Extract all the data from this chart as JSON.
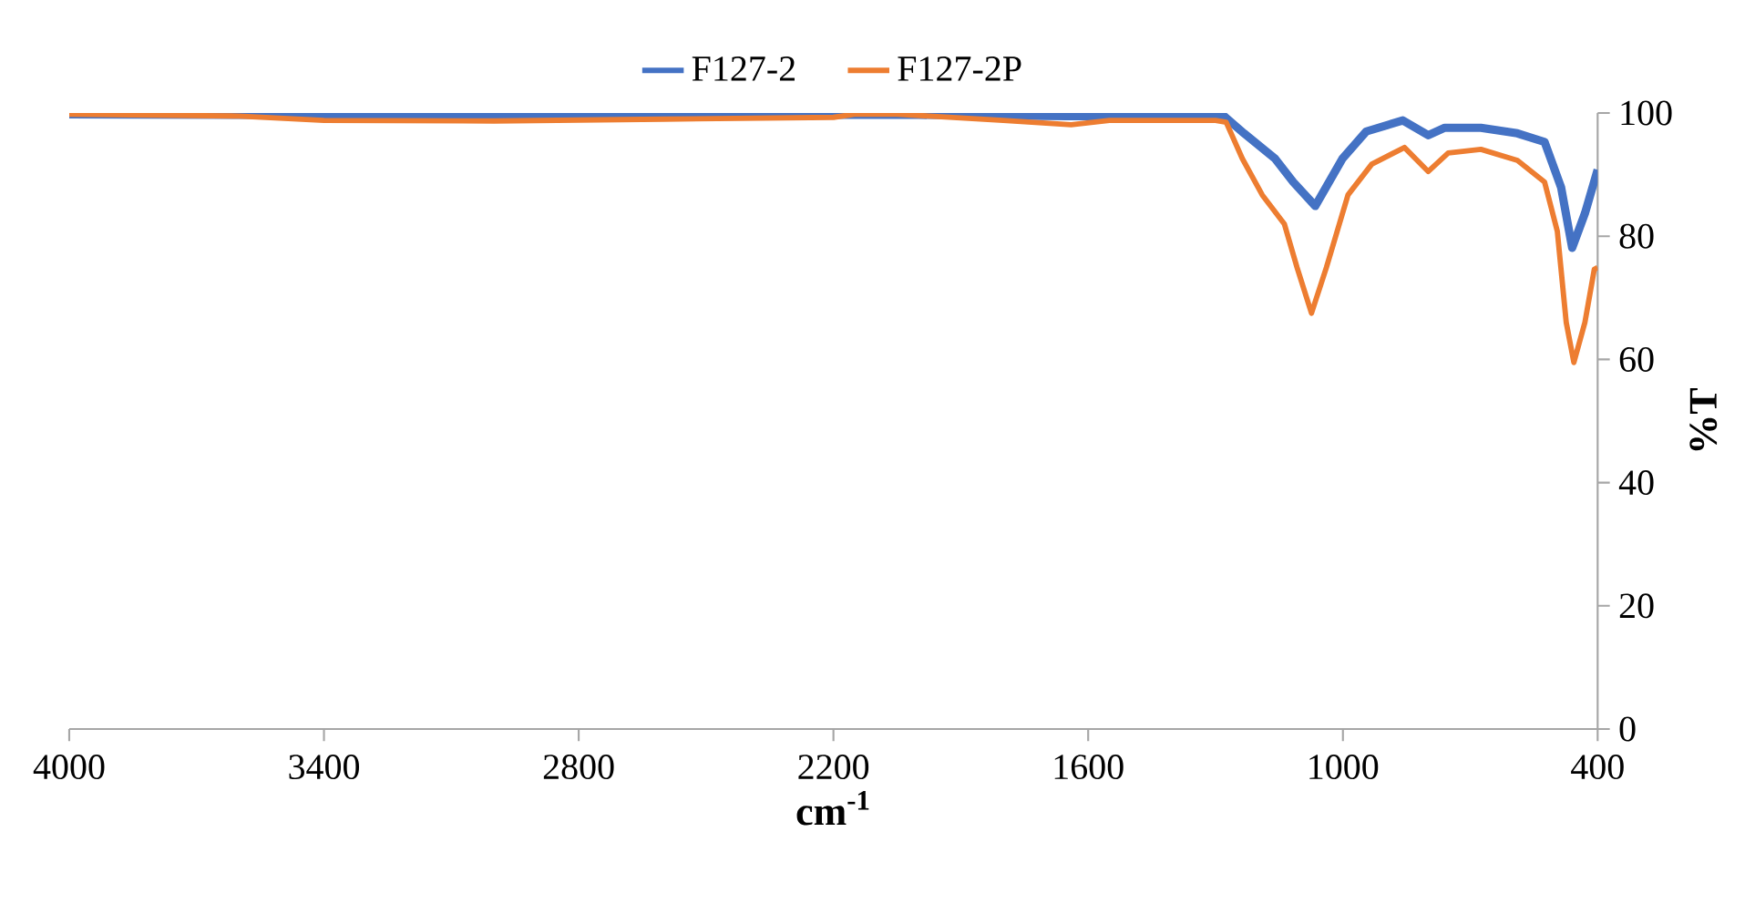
{
  "chart_data": {
    "type": "line",
    "xlabel": "cm$^{-1}$",
    "ylabel": "%T",
    "legend": "top",
    "grid": false,
    "marker": "none",
    "line_style": "solid",
    "xlim": [
      4000,
      400
    ],
    "xticks": [
      4000,
      3400,
      2800,
      2200,
      1600,
      1000,
      400
    ],
    "ylim": [
      0,
      100
    ],
    "yticks": [
      0,
      20,
      40,
      60,
      80,
      100
    ],
    "series": [
      {
        "name": "F127-2",
        "color": "#4472c4",
        "x": [
          4000,
          3600,
          3000,
          2400,
          2000,
          1650,
          1280,
          1233,
          1160,
          1117,
          1065,
          1001,
          945,
          859,
          799,
          760,
          675,
          589,
          525,
          486,
          460,
          430,
          400
        ],
        "values": [
          99.8,
          99.7,
          99.7,
          99.7,
          99.7,
          99.5,
          99.5,
          96.7,
          92.6,
          88.8,
          84.9,
          92.6,
          97,
          98.8,
          96.4,
          97.6,
          97.6,
          96.7,
          95.3,
          87.9,
          78.1,
          83.7,
          90.8
        ]
      },
      {
        "name": "F127-2P",
        "color": "#ed7d31",
        "x": [
          4000,
          3600,
          3400,
          3000,
          2600,
          2200,
          2150,
          2050,
          1800,
          1640,
          1550,
          1300,
          1275,
          1237,
          1190,
          1138,
          1108,
          1074,
          1039,
          988,
          932,
          855,
          799,
          752,
          675,
          589,
          525,
          495,
          474,
          456,
          430,
          408,
          400
        ],
        "values": [
          99.8,
          99.5,
          98.8,
          98.7,
          99,
          99.3,
          99.8,
          99.8,
          98.8,
          98.1,
          98.8,
          98.8,
          98.5,
          92.6,
          86.7,
          82,
          74.9,
          67.5,
          74.9,
          86.7,
          91.7,
          94.4,
          90.5,
          93.5,
          94.1,
          92.3,
          88.8,
          80.8,
          66,
          59.5,
          66,
          74.6,
          74.9
        ]
      }
    ]
  }
}
